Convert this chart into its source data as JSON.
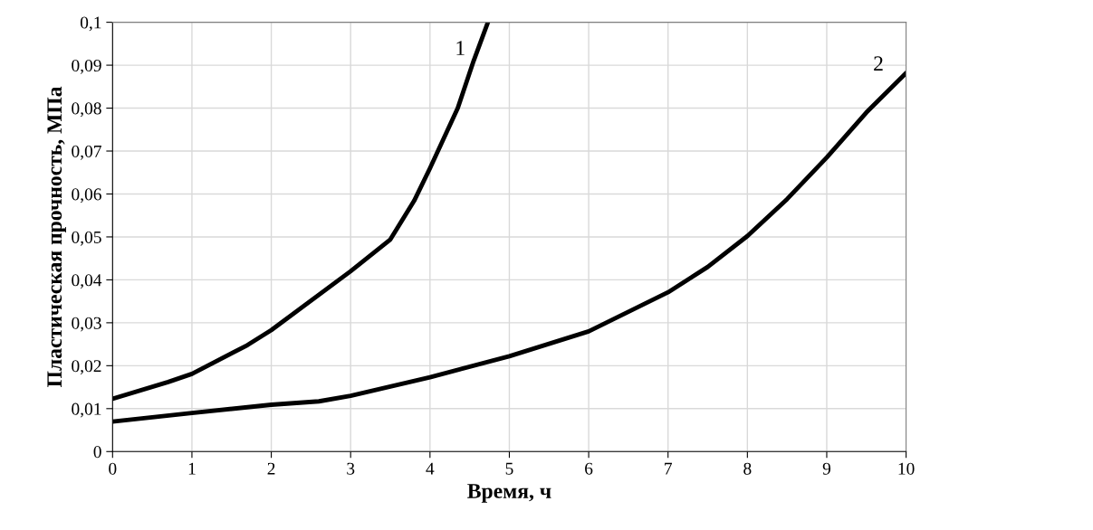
{
  "chart_data": {
    "type": "line",
    "xlabel": "Время, ч",
    "ylabel": "Пластическая прочность, МПа",
    "xlim": [
      0,
      10
    ],
    "xticks": [
      0,
      1,
      2,
      3,
      4,
      5,
      6,
      7,
      8,
      9,
      10
    ],
    "ylim": [
      0,
      0.1
    ],
    "yticks": [
      0,
      {
        "value": 0.01,
        "label": "0,01"
      },
      {
        "value": 0.02,
        "label": "0,02"
      },
      {
        "value": 0.03,
        "label": "0,03"
      },
      {
        "value": 0.04,
        "label": "0,04"
      },
      {
        "value": 0.05,
        "label": "0,05"
      },
      {
        "value": 0.06,
        "label": "0,06"
      },
      {
        "value": 0.07,
        "label": "0,07"
      },
      {
        "value": 0.08,
        "label": "0,08"
      },
      {
        "value": 0.09,
        "label": "0,09"
      },
      {
        "value": 0.1,
        "label": "0,1"
      }
    ],
    "grid": true,
    "legend": false,
    "marker": "none",
    "line_style": "solid",
    "series": [
      {
        "name": "1",
        "color": "#000000",
        "x": [
          0,
          0.7,
          1,
          1.7,
          2,
          3,
          3.5,
          3.8,
          4,
          4.35,
          4.55,
          4.73
        ],
        "values": [
          0.0123,
          0.0162,
          0.0181,
          0.0248,
          0.0283,
          0.042,
          0.0494,
          0.0584,
          0.066,
          0.08,
          0.091,
          0.1
        ]
      },
      {
        "name": "2",
        "color": "#000000",
        "x": [
          0,
          1,
          2,
          2.6,
          3,
          4,
          5,
          6,
          7,
          7.5,
          8,
          8.5,
          9,
          9.5,
          10
        ],
        "values": [
          0.007,
          0.009,
          0.0109,
          0.0117,
          0.013,
          0.0173,
          0.0222,
          0.028,
          0.0371,
          0.043,
          0.0502,
          0.0588,
          0.0685,
          0.079,
          0.0882
        ]
      }
    ]
  }
}
